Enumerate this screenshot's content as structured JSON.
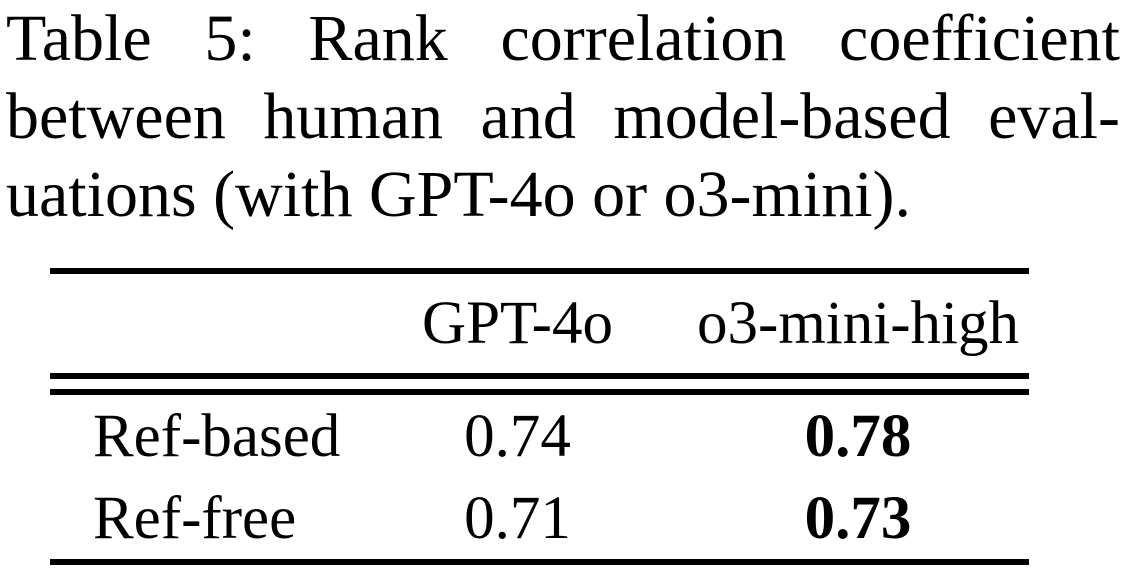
{
  "page": {
    "background_color": "#ffffff",
    "text_color": "#000000"
  },
  "caption": {
    "line1": "Table 5: Rank correlation coefficient",
    "line2": "between human and model-based eval-",
    "line3": "uations (with GPT-4o or o3-mini).",
    "full_text": "Table 5: Rank correlation coefficient between human and model-based evaluations (with GPT-4o or o3-mini)."
  },
  "table": {
    "header": {
      "label": "",
      "col1": "GPT-4o",
      "col2": "o3-mini-high"
    },
    "rows": [
      {
        "label": "Ref-based",
        "col1": "0.74",
        "col2": "0.78",
        "col2_bold": true
      },
      {
        "label": "Ref-free",
        "col1": "0.71",
        "col2": "0.73",
        "col2_bold": true
      }
    ]
  }
}
